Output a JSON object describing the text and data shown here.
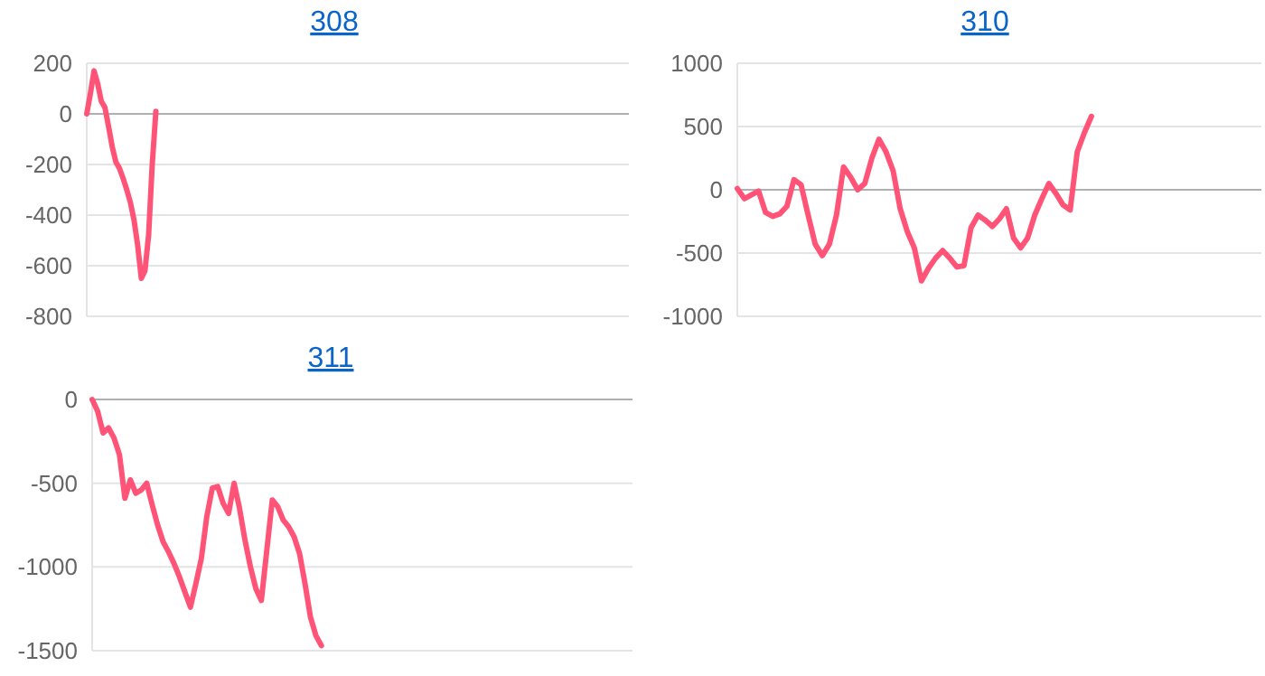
{
  "chart_data": [
    {
      "type": "line",
      "title": "308",
      "tick_labels": "y",
      "grid": "y",
      "ylim": [
        -800,
        200
      ],
      "yticks": [
        -800,
        -600,
        -400,
        -200,
        0,
        200
      ],
      "categories": [
        null,
        null,
        null,
        null,
        null,
        null,
        null,
        null,
        null,
        null,
        null,
        null,
        null,
        null,
        null,
        null,
        null,
        null,
        null,
        null,
        null,
        null,
        null,
        null,
        null,
        null,
        null,
        null,
        null,
        null,
        null,
        null,
        null,
        null,
        null,
        null,
        null,
        null,
        null,
        null,
        null,
        null,
        null,
        null,
        null,
        null,
        null,
        null,
        null,
        null,
        null,
        null,
        null,
        null,
        null,
        null,
        null,
        null,
        null,
        null,
        null,
        null,
        null,
        null,
        null,
        null,
        null,
        null,
        null,
        null,
        null,
        null,
        null,
        null,
        null,
        null,
        null,
        null,
        null,
        null,
        null,
        null,
        null,
        null,
        null,
        null,
        null,
        null,
        null,
        null,
        null,
        null,
        null,
        null,
        null,
        null,
        null,
        null,
        null,
        null,
        null,
        null,
        null,
        null,
        null,
        null,
        null,
        null,
        null,
        null,
        null,
        null,
        null,
        null,
        null,
        null,
        null,
        null,
        null,
        null,
        null,
        null,
        null,
        null,
        null,
        null,
        null,
        null,
        null,
        null,
        null,
        null,
        null,
        null,
        null,
        null,
        null,
        null,
        null,
        null,
        null,
        null,
        null,
        null,
        null,
        null,
        null,
        null,
        null,
        null
      ],
      "series": [
        {
          "color": "#ff5477",
          "values": [
            0,
            80,
            170,
            120,
            50,
            25,
            -50,
            -130,
            -190,
            -215,
            -255,
            -300,
            -350,
            -420,
            -520,
            -650,
            -620,
            -480,
            -200,
            10,
            null,
            null,
            null,
            null,
            null,
            null,
            null,
            null,
            null,
            null,
            null,
            null,
            null,
            null,
            null,
            null,
            null,
            null,
            null,
            null,
            null,
            null,
            null,
            null,
            null,
            null,
            null,
            null,
            null,
            null,
            null,
            null,
            null,
            null,
            null,
            null,
            null,
            null,
            null,
            null,
            null,
            null,
            null,
            null,
            null,
            null,
            null,
            null,
            null,
            null,
            null,
            null,
            null,
            null,
            null,
            null,
            null,
            null,
            null,
            null,
            null,
            null,
            null,
            null,
            null,
            null,
            null,
            null,
            null,
            null,
            null,
            null,
            null,
            null,
            null,
            null,
            null,
            null,
            null,
            null,
            null,
            null,
            null,
            null,
            null,
            null,
            null,
            null,
            null,
            null,
            null,
            null,
            null,
            null,
            null,
            null,
            null,
            null,
            null,
            null,
            null,
            null,
            null,
            null,
            null,
            null,
            null,
            null,
            null,
            null,
            null,
            null,
            null,
            null,
            null,
            null,
            null,
            null,
            null,
            null,
            null,
            null,
            null,
            null,
            null,
            null,
            null,
            null,
            null,
            null
          ]
        }
      ]
    },
    {
      "type": "line",
      "title": "310",
      "tick_labels": "y",
      "grid": "y",
      "ylim": [
        -1000,
        1000
      ],
      "yticks": [
        -1000,
        -500,
        0,
        500,
        1000
      ],
      "categories": [
        null,
        null,
        null,
        null,
        null,
        null,
        null,
        null,
        null,
        null,
        null,
        null,
        null,
        null,
        null,
        null,
        null,
        null,
        null,
        null,
        null,
        null,
        null,
        null,
        null,
        null,
        null,
        null,
        null,
        null,
        null,
        null,
        null,
        null,
        null,
        null,
        null,
        null,
        null,
        null,
        null,
        null,
        null,
        null,
        null,
        null,
        null,
        null,
        null,
        null,
        null,
        null,
        null,
        null,
        null,
        null,
        null,
        null,
        null,
        null,
        null,
        null,
        null,
        null,
        null,
        null,
        null,
        null,
        null,
        null,
        null,
        null,
        null,
        null,
        null
      ],
      "series": [
        {
          "color": "#ff5477",
          "values": [
            10,
            -70,
            -40,
            -10,
            -180,
            -210,
            -190,
            -130,
            80,
            40,
            -200,
            -430,
            -520,
            -430,
            -200,
            180,
            100,
            0,
            50,
            250,
            400,
            300,
            150,
            -150,
            -330,
            -460,
            -720,
            -620,
            -540,
            -480,
            -540,
            -610,
            -600,
            -300,
            -200,
            -240,
            -290,
            -230,
            -150,
            -380,
            -460,
            -380,
            -200,
            -70,
            50,
            -30,
            -120,
            -160,
            300,
            450,
            580,
            null,
            null,
            null,
            null,
            null,
            null,
            null,
            null,
            null,
            null,
            null,
            null,
            null,
            null,
            null,
            null,
            null,
            null,
            null,
            null,
            null,
            null,
            null,
            null
          ]
        }
      ]
    },
    {
      "type": "line",
      "title": "311",
      "tick_labels": "y",
      "grid": "y",
      "ylim": [
        -1500,
        0
      ],
      "yticks": [
        -1500,
        -1000,
        -500,
        0
      ],
      "categories": [
        null,
        null,
        null,
        null,
        null,
        null,
        null,
        null,
        null,
        null,
        null,
        null,
        null,
        null,
        null,
        null,
        null,
        null,
        null,
        null,
        null,
        null,
        null,
        null,
        null,
        null,
        null,
        null,
        null,
        null,
        null,
        null,
        null,
        null,
        null,
        null,
        null,
        null,
        null,
        null,
        null,
        null,
        null,
        null,
        null,
        null,
        null,
        null,
        null,
        null,
        null,
        null,
        null,
        null,
        null,
        null,
        null,
        null,
        null,
        null,
        null,
        null,
        null,
        null,
        null,
        null,
        null,
        null,
        null,
        null,
        null,
        null,
        null,
        null,
        null,
        null,
        null,
        null,
        null,
        null,
        null,
        null,
        null,
        null,
        null,
        null,
        null,
        null,
        null,
        null,
        null,
        null,
        null,
        null,
        null,
        null,
        null,
        null,
        null,
        null
      ],
      "series": [
        {
          "color": "#ff5477",
          "values": [
            0,
            -70,
            -200,
            -170,
            -230,
            -330,
            -590,
            -480,
            -560,
            -540,
            -500,
            -630,
            -750,
            -850,
            -910,
            -980,
            -1060,
            -1150,
            -1240,
            -1100,
            -950,
            -700,
            -530,
            -520,
            -620,
            -680,
            -500,
            -650,
            -840,
            -1000,
            -1130,
            -1200,
            -900,
            -600,
            -640,
            -720,
            -760,
            -820,
            -920,
            -1100,
            -1300,
            -1410,
            -1470,
            null,
            null,
            null,
            null,
            null,
            null,
            null,
            null,
            null,
            null,
            null,
            null,
            null,
            null,
            null,
            null,
            null,
            null,
            null,
            null,
            null,
            null,
            null,
            null,
            null,
            null,
            null,
            null,
            null,
            null,
            null,
            null,
            null,
            null,
            null,
            null,
            null,
            null,
            null,
            null,
            null,
            null,
            null,
            null,
            null,
            null,
            null,
            null,
            null,
            null,
            null,
            null,
            null,
            null,
            null,
            null,
            null
          ]
        }
      ]
    }
  ]
}
